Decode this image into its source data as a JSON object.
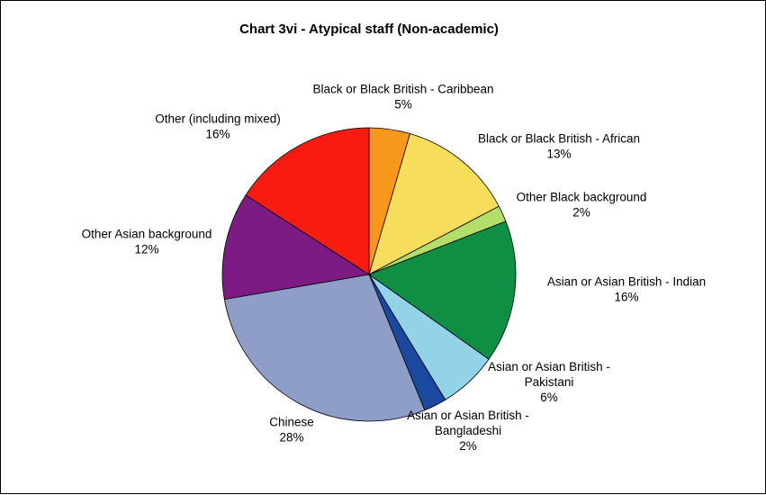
{
  "chart_data": {
    "type": "pie",
    "title": "Chart 3vi - Atypical staff (Non-academic)",
    "slices": [
      {
        "label_lines": [
          "Black or Black British - Caribbean"
        ],
        "pct_label": "5%",
        "value": 4.5,
        "color": "#F7981D"
      },
      {
        "label_lines": [
          "Black or Black British - African"
        ],
        "pct_label": "13%",
        "value": 12.8,
        "color": "#F6DE5C"
      },
      {
        "label_lines": [
          "Other Black background"
        ],
        "pct_label": "2%",
        "value": 1.8,
        "color": "#B3DE69"
      },
      {
        "label_lines": [
          "Asian or Asian British - Indian"
        ],
        "pct_label": "16%",
        "value": 15.7,
        "color": "#0E8F43"
      },
      {
        "label_lines": [
          "Asian or Asian British -",
          "Pakistani"
        ],
        "pct_label": "6%",
        "value": 6.5,
        "color": "#92D3E8"
      },
      {
        "label_lines": [
          "Asian or Asian British -",
          "Bangladeshi"
        ],
        "pct_label": "2%",
        "value": 2.5,
        "color": "#1A4AA0"
      },
      {
        "label_lines": [
          "Chinese"
        ],
        "pct_label": "28%",
        "value": 28.5,
        "color": "#8F9DC9"
      },
      {
        "label_lines": [
          "Other Asian background"
        ],
        "pct_label": "12%",
        "value": 11.8,
        "color": "#7E1A84"
      },
      {
        "label_lines": [
          "Other (including mixed)"
        ],
        "pct_label": "16%",
        "value": 15.9,
        "color": "#F71B10"
      }
    ],
    "start_angle_deg": 0,
    "direction": "clockwise",
    "legend": "none"
  }
}
